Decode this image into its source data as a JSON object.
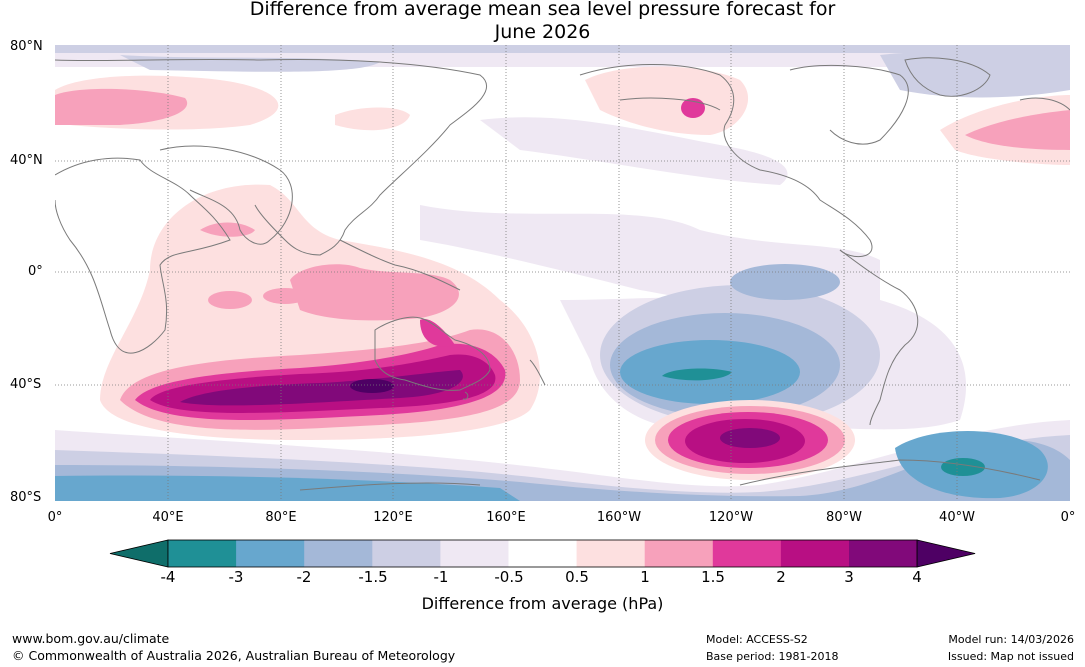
{
  "title_line1": "Difference from average mean sea level pressure forecast for",
  "title_line2": "June 2026",
  "lat_labels": [
    "80°N",
    "40°N",
    "0°",
    "40°S",
    "80°S"
  ],
  "lon_labels": [
    "0°",
    "40°E",
    "80°E",
    "120°E",
    "160°E",
    "160°W",
    "120°W",
    "80°W",
    "40°W",
    "0°"
  ],
  "colorbar": {
    "ticks": [
      "-4",
      "-3",
      "-2",
      "-1.5",
      "-1",
      "-0.5",
      "0.5",
      "1",
      "1.5",
      "2",
      "3",
      "4"
    ],
    "colors": [
      "#0f6e6a",
      "#1f9096",
      "#67a7ce",
      "#a4b8d8",
      "#cdcfe4",
      "#efe8f3",
      "#ffffff",
      "#fde0e0",
      "#f7a1bb",
      "#e0399b",
      "#b80f83",
      "#81097a",
      "#4e0064"
    ],
    "label": "Difference from average (hPa)"
  },
  "footer": {
    "website": "www.bom.gov.au/climate",
    "copyright": "© Commonwealth of Australia 2026, Australian Bureau of Meteorology",
    "model": "Model: ACCESS-S2",
    "base_period": "Base period: 1981-2018",
    "model_run": "Model run: 14/03/2026",
    "issued": "Issued: Map not issued"
  }
}
